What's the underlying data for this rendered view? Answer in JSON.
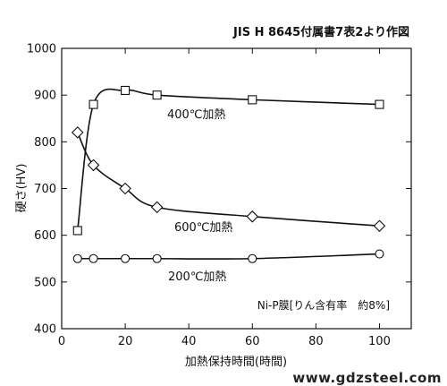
{
  "chart_data": {
    "type": "line",
    "source_note": "JIS H 8645付属書7表2より作図",
    "xlabel": "加熱保持時間(時間)",
    "ylabel": "硬さ(HV)",
    "xlim": [
      0,
      110
    ],
    "ylim": [
      400,
      1000
    ],
    "xticks": [
      0,
      20,
      40,
      60,
      80,
      100
    ],
    "yticks": [
      400,
      500,
      600,
      700,
      800,
      900,
      1000
    ],
    "grid": false,
    "note": "Ni-P膜[りん含有率　約8%]",
    "series": [
      {
        "name": "400℃加熱",
        "marker": "square",
        "x": [
          5,
          10,
          20,
          30,
          60,
          100
        ],
        "y": [
          610,
          880,
          910,
          900,
          890,
          880
        ]
      },
      {
        "name": "600℃加熱",
        "marker": "diamond",
        "x": [
          5,
          10,
          20,
          30,
          60,
          100
        ],
        "y": [
          820,
          750,
          700,
          660,
          640,
          620
        ]
      },
      {
        "name": "200℃加熱",
        "marker": "circle",
        "x": [
          5,
          10,
          20,
          30,
          60,
          100
        ],
        "y": [
          550,
          550,
          550,
          550,
          550,
          560
        ]
      }
    ]
  },
  "watermark": "www.gdzsteel.com"
}
